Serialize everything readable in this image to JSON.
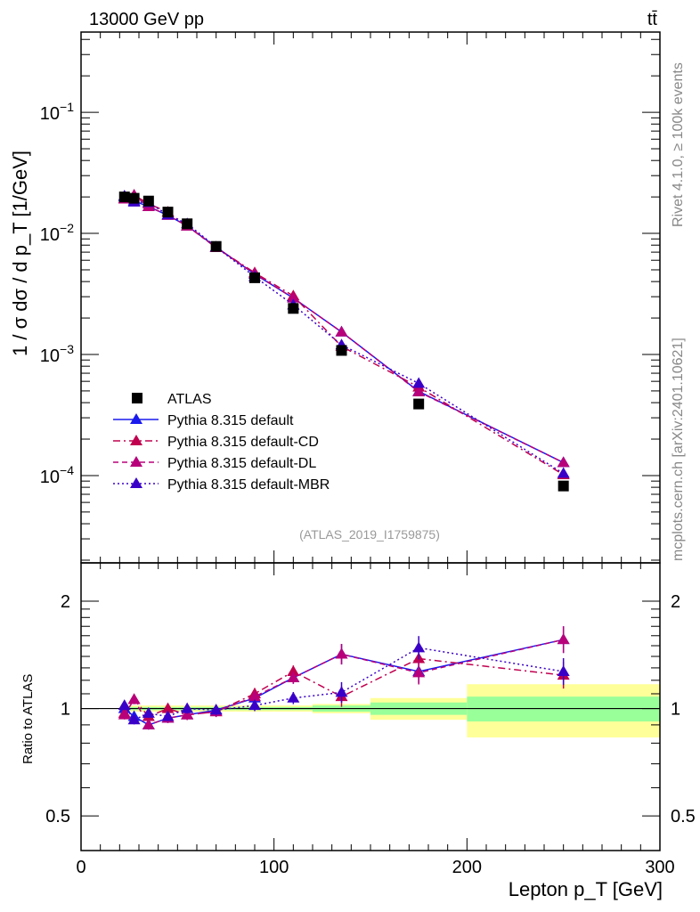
{
  "header": {
    "energy_label": "13000 GeV pp",
    "process_label": "tt̄"
  },
  "side_labels": {
    "rivet": "Rivet 4.1.0, ≥ 100k events",
    "mcplots": "mcplots.cern.ch [arXiv:2401.10621]"
  },
  "analysis_label": "(ATLAS_2019_I1759875)",
  "chart_data": [
    {
      "type": "scatter",
      "title": "",
      "xlabel": "Lepton p_T [GeV]",
      "ylabel": "1 / σ dσ / d p_T [1/GeV]",
      "xlim": [
        0,
        300
      ],
      "ylim": [
        1.9e-05,
        0.46
      ],
      "yscale": "log",
      "xticks": [
        "0",
        "100",
        "200",
        "300"
      ],
      "yticks": [
        "10^-4",
        "10^-3",
        "10^-2",
        "10^-1"
      ],
      "x": [
        22.5,
        27.5,
        35,
        45,
        55,
        70,
        90,
        110,
        135,
        175,
        250
      ],
      "bin_edges": [
        20,
        25,
        30,
        40,
        50,
        60,
        80,
        100,
        120,
        150,
        200,
        300
      ],
      "series": [
        {
          "name": "ATLAS",
          "color": "#000000",
          "values": [
            0.02,
            0.0195,
            0.0185,
            0.015,
            0.012,
            0.0078,
            0.0043,
            0.0024,
            0.00108,
            0.00039,
            8.2e-05
          ]
        },
        {
          "name": "Pythia 8.315 default",
          "color": "#1a1aee",
          "style": "solid",
          "ratio": [
            1.0,
            0.95,
            0.9,
            0.94,
            0.96,
            0.99,
            1.07,
            1.22,
            1.42,
            1.27,
            1.56
          ]
        },
        {
          "name": "Pythia 8.315 default-CD",
          "color": "#c0004e",
          "style": "dashdot",
          "ratio": [
            0.97,
            1.06,
            0.95,
            1.0,
            0.96,
            0.98,
            1.1,
            1.27,
            1.08,
            1.38,
            1.24
          ]
        },
        {
          "name": "Pythia 8.315 default-DL",
          "color": "#b8007a",
          "style": "dashed",
          "ratio": [
            0.96,
            1.06,
            0.9,
            0.94,
            0.96,
            0.98,
            1.08,
            1.22,
            1.42,
            1.26,
            1.56
          ]
        },
        {
          "name": "Pythia 8.315 default-MBR",
          "color": "#3a00c8",
          "style": "dotted",
          "ratio": [
            1.02,
            0.93,
            0.97,
            0.95,
            1.0,
            0.99,
            1.02,
            1.07,
            1.11,
            1.48,
            1.27
          ]
        }
      ],
      "legend_position": "lower-left"
    },
    {
      "type": "scatter",
      "ylabel": "Ratio to ATLAS",
      "xlabel": "Lepton p_T [GeV]",
      "ylim": [
        0.4,
        2.56
      ],
      "yscale": "log",
      "yticks": [
        "0.5",
        "1",
        "2"
      ],
      "band_inner": [
        0.01,
        0.01,
        0.01,
        0.01,
        0.01,
        0.01,
        0.01,
        0.01,
        0.02,
        0.04,
        0.08
      ],
      "band_outer": [
        0.02,
        0.02,
        0.02,
        0.02,
        0.02,
        0.02,
        0.02,
        0.02,
        0.03,
        0.07,
        0.17
      ],
      "band_colors": {
        "inner": "#99ff99",
        "outer": "#ffff99"
      }
    }
  ]
}
